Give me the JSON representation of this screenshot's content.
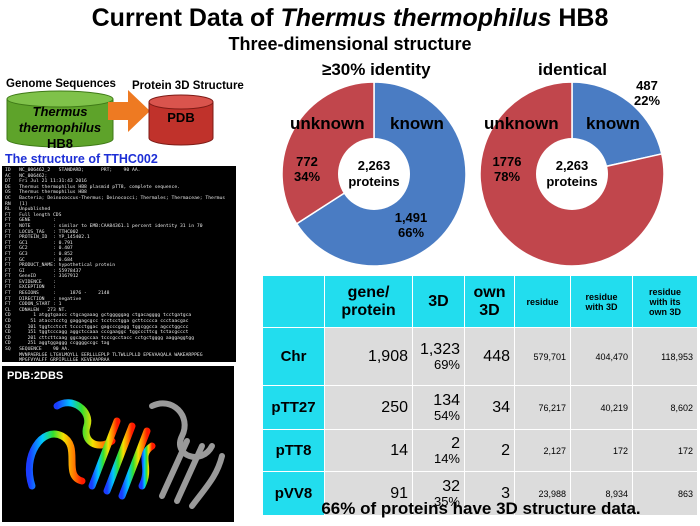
{
  "header": {
    "title_prefix": "Current Data of ",
    "title_italic": "Thermus thermophilus",
    "title_suffix": " HB8",
    "subtitle": "Three-dimensional structure"
  },
  "flow": {
    "genome_label": "Genome Sequences",
    "genome_text_italic": "Thermus thermophilus",
    "genome_text_suffix": " HB8",
    "genome_line1": "Thermus",
    "genome_line2_italic": "thermophilus",
    "genome_line2_suffix": " HB8",
    "protein_label": "Protein 3D Structure",
    "protein_text": "PDB",
    "colors": {
      "genome": "#5ea32a",
      "pdb": "#c0322b",
      "arrow": "#ee7a22"
    }
  },
  "terminal": {
    "title": "The structure of TTHC002",
    "lines": [
      "ID   NC_006462_2   STANDARD;      PRT;    90 AA.",
      "AC   NC_006462;",
      "DT   Fri Jul 21 11:31:43 2016",
      "DE   Thermus thermophilus HB8 plasmid pTT8, complete sequence.",
      "OS   Thermus thermophilus HB8",
      "OC   Bacteria; Deinococcus-Thermus; Deinococci; Thermales; Thermaceae; Thermus",
      "RN   [1]",
      "RL   Unpublished",
      "FT   Full length CDS",
      "FT   GENE        :",
      "FT   NOTE        : similar to EMB:CAA84361.1 percent identity 31 in 70",
      "FT   LOCUS_TAG   : TTHC002",
      "FT   PROTEIN_ID  : YP_145402.1",
      "FT   GC1         : 0.791",
      "FT   GC2         : 0.407",
      "FT   GC3         : 0.852",
      "FT   GC          : 0.684",
      "FT   PRODUCT_NAME: hypothetical protein",
      "FT   GI          : 55978437",
      "FT   GeneID      : 3167912",
      "FT   EVIDENCE    :",
      "FT   EXCEPTION   :",
      "FT   REGIONS     :     1876 -    2148",
      "FT   DIRECTION   : negative",
      "FT   CODON_START : 1",
      "CL   CDNALEN   273 NT.",
      "CD        1 atggtgaacc ctgcagaaag gctgggggag ctgacagggg tcctgatgca",
      "CD       51 atacctcctg gaggagcgcc tcctcctgga gcttcccca ccctaacgac",
      "CD      101 tggtcctcct tcccctggac gagcccgagg tggcggcca agcctggccc",
      "CD      151 tggtcccagg aggctccaaa cccgaaggc tggcccttcg tctacgccct",
      "CD      201 cttcttcaag ggcaggccaa tcccgcctacc cctgctgggg aaggaggtgg",
      "CD      251 aggtggaggg ccggggccgc tag",
      "SQ   SEQUENCE    90 AA.",
      "     MVNPAERLGE LTGVLMQYLL EERLLLEPLP TLTWLLPLLD EPEVAAQALA WAKEARPPEG",
      "     MPGFVYALFF GRPIPLLLGE KEVEVAPRAA",
      "//"
    ]
  },
  "pdb": {
    "label": "PDB:2DBS"
  },
  "pies": [
    {
      "title": "≥30% identity",
      "known_label": "known",
      "unknown_label": "unknown",
      "known_value": "1,491",
      "known_pct": "66%",
      "unknown_value": "772",
      "unknown_pct": "34%",
      "center_line1": "2,263",
      "center_line2": "proteins",
      "known_fraction": 0.659,
      "colors": {
        "known": "#4a7cc3",
        "unknown": "#c1464c"
      }
    },
    {
      "title": "identical",
      "known_label": "known",
      "unknown_label": "unknown",
      "known_value": "487",
      "known_pct": "22%",
      "unknown_value": "1776",
      "unknown_pct": "78%",
      "center_line1": "2,263",
      "center_line2": "proteins",
      "known_fraction": 0.215,
      "colors": {
        "known": "#4a7cc3",
        "unknown": "#c1464c"
      }
    }
  ],
  "table": {
    "headers": [
      "",
      "gene/\nprotein",
      "3D",
      "own\n3D",
      "residue",
      "residue\nwith 3D",
      "residue\nwith its\nown 3D"
    ],
    "rows": [
      {
        "name": "Chr",
        "gene": "1,908",
        "d3": "1,323",
        "d3pct": "69%",
        "own": "448",
        "res": "579,701",
        "res3d": "404,470",
        "resown": "118,953"
      },
      {
        "name": "pTT27",
        "gene": "250",
        "d3": "134",
        "d3pct": "54%",
        "own": "34",
        "res": "76,217",
        "res3d": "40,219",
        "resown": "8,602"
      },
      {
        "name": "pTT8",
        "gene": "14",
        "d3": "2",
        "d3pct": "14%",
        "own": "2",
        "res": "2,127",
        "res3d": "172",
        "resown": "172"
      },
      {
        "name": "pVV8",
        "gene": "91",
        "d3": "32",
        "d3pct": "35%",
        "own": "3",
        "res": "23,988",
        "res3d": "8,934",
        "resown": "863"
      }
    ]
  },
  "footer": "66% of proteins have 3D structure data."
}
